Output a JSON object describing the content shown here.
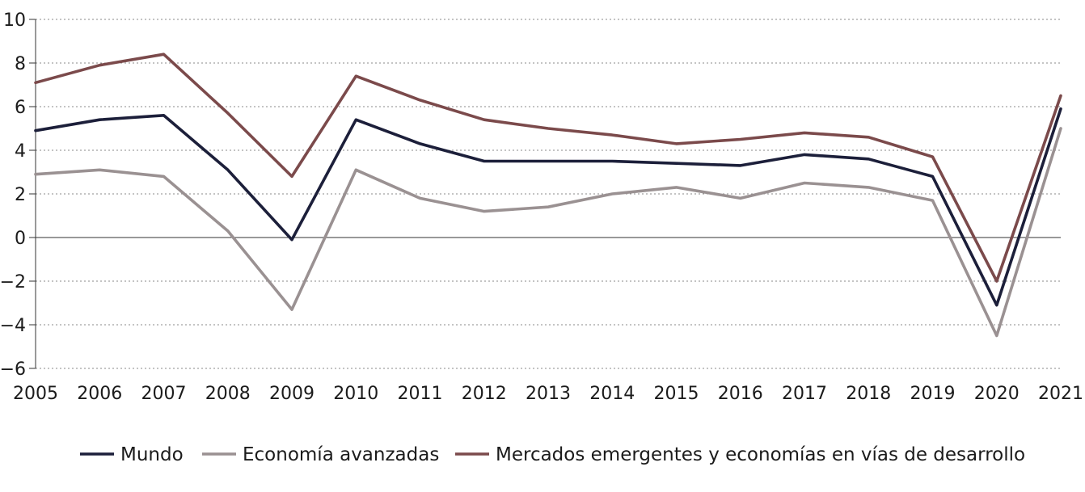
{
  "chart_data": {
    "type": "line",
    "title": "",
    "xlabel": "",
    "ylabel": "",
    "x": [
      "2005",
      "2006",
      "2007",
      "2008",
      "2009",
      "2010",
      "2011",
      "2012",
      "2013",
      "2014",
      "2015",
      "2016",
      "2017",
      "2018",
      "2019",
      "2020",
      "2021"
    ],
    "ylim": [
      -6,
      10
    ],
    "yticks": [
      10,
      8,
      6,
      4,
      2,
      0,
      -2,
      -4,
      -6
    ],
    "ytick_labels": [
      "10",
      "8",
      "6",
      "4",
      "2",
      "0",
      "-2",
      "-4",
      "-6"
    ],
    "grid": "horizontal dotted",
    "legend_position": "bottom",
    "series": [
      {
        "name": "Mundo",
        "color": "#1c1f3a",
        "values": [
          4.9,
          5.4,
          5.6,
          3.1,
          -0.1,
          5.4,
          4.3,
          3.5,
          3.5,
          3.5,
          3.4,
          3.3,
          3.8,
          3.6,
          2.8,
          -3.1,
          5.9
        ]
      },
      {
        "name": "Economía avanzadas",
        "color": "#9a9192",
        "values": [
          2.9,
          3.1,
          2.8,
          0.3,
          -3.3,
          3.1,
          1.8,
          1.2,
          1.4,
          2.0,
          2.3,
          1.8,
          2.5,
          2.3,
          1.7,
          -4.5,
          5.0
        ]
      },
      {
        "name": "Mercados emergentes y economías en vías de desarrollo",
        "color": "#7b4a4b",
        "values": [
          7.1,
          7.9,
          8.4,
          5.7,
          2.8,
          7.4,
          6.3,
          5.4,
          5.0,
          4.7,
          4.3,
          4.5,
          4.8,
          4.6,
          3.7,
          -2.0,
          6.5
        ]
      }
    ]
  }
}
